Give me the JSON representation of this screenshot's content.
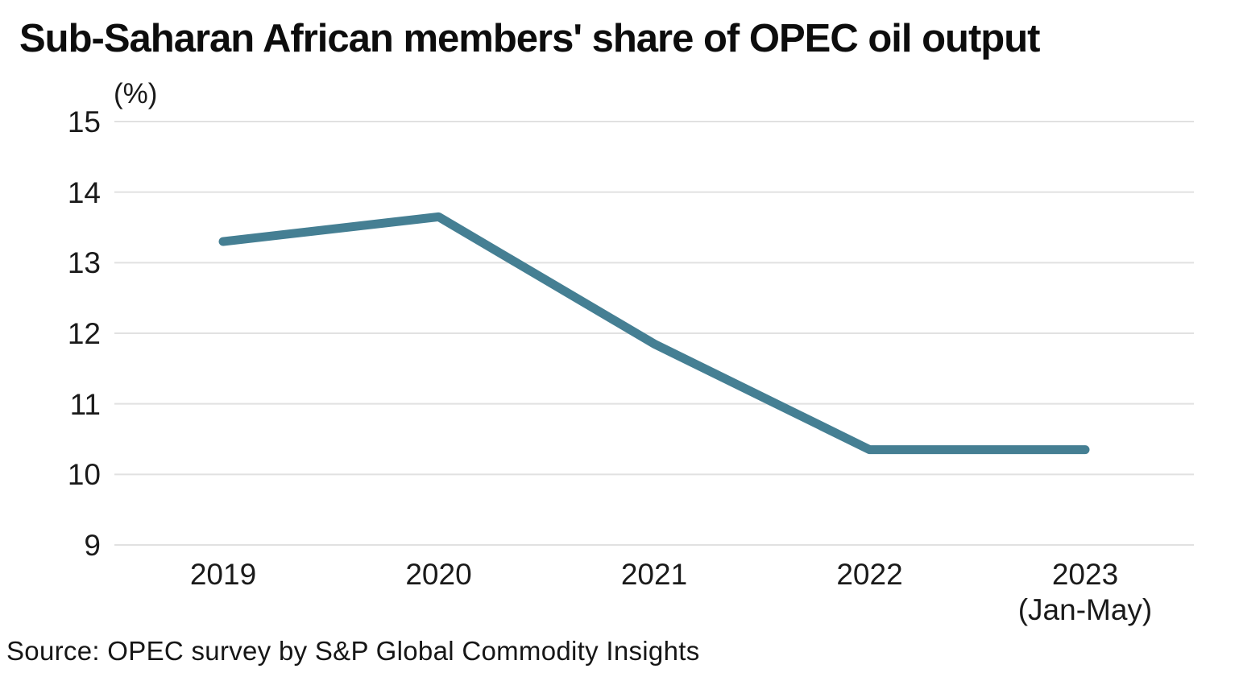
{
  "chart_data": {
    "type": "line",
    "title": "Sub-Saharan African members' share of OPEC oil output",
    "unit_label": "(%)",
    "categories": [
      {
        "label": "2019",
        "sublabel": ""
      },
      {
        "label": "2020",
        "sublabel": ""
      },
      {
        "label": "2021",
        "sublabel": ""
      },
      {
        "label": "2022",
        "sublabel": ""
      },
      {
        "label": "2023",
        "sublabel": "(Jan-May)"
      }
    ],
    "series": [
      {
        "name": "Sub-Saharan African members' share of OPEC oil output (%)",
        "values": [
          13.3,
          13.65,
          11.85,
          10.35,
          10.35
        ]
      }
    ],
    "ylim": [
      9,
      15
    ],
    "yticks": [
      15,
      14,
      13,
      12,
      11,
      10,
      9
    ],
    "grid": "horizontal",
    "legend": "none",
    "source": "Source: OPEC survey by S&P Global Commodity Insights",
    "colors": {
      "line": "#457f93",
      "gridline": "#e1e1e1",
      "text": "#1a1a1a"
    }
  }
}
